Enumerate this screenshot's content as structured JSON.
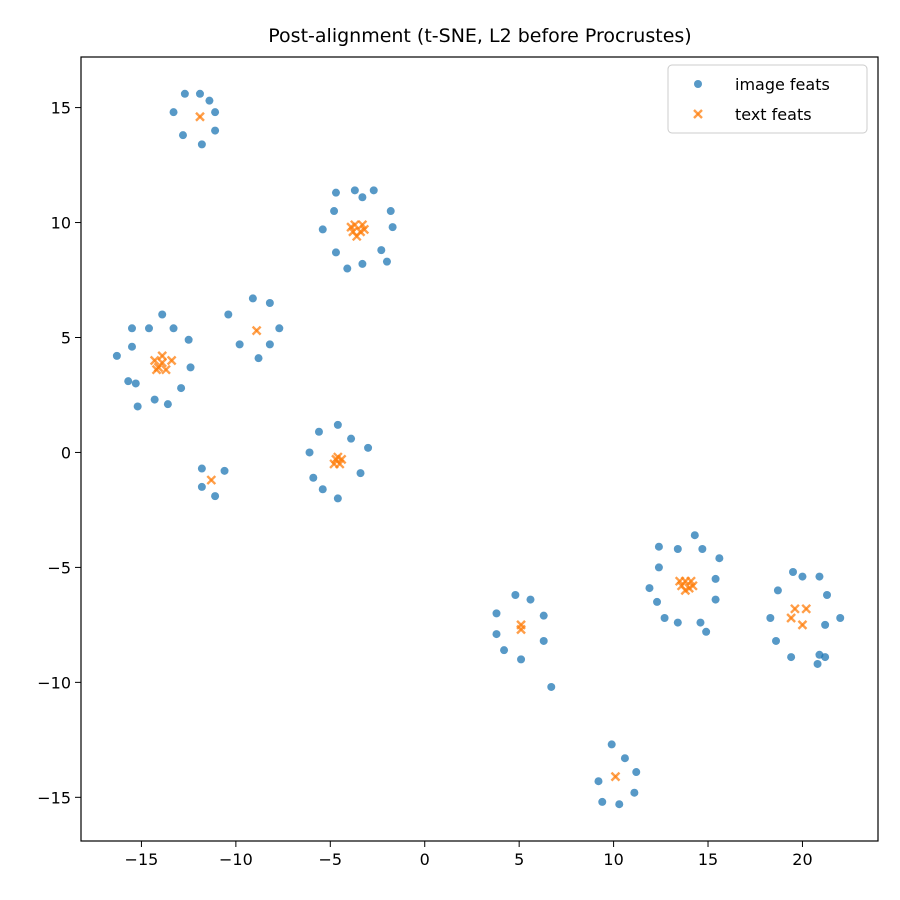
{
  "chart_data": {
    "type": "scatter",
    "title": "Post-alignment (t-SNE, L2 before Procrustes)",
    "xlabel": "",
    "ylabel": "",
    "xlim": [
      -18.2,
      24.0
    ],
    "ylim": [
      -16.9,
      17.2
    ],
    "xticks": [
      -15,
      -10,
      -5,
      0,
      5,
      10,
      15,
      20
    ],
    "yticks": [
      -15,
      -10,
      -5,
      0,
      5,
      10,
      15
    ],
    "xtick_labels": [
      "−15",
      "−10",
      "−5",
      "0",
      "5",
      "10",
      "15",
      "20"
    ],
    "ytick_labels": [
      "−15",
      "−10",
      "−5",
      "0",
      "5",
      "10",
      "15"
    ],
    "grid": false,
    "legend_position": "top-right",
    "series": [
      {
        "name": "image feats",
        "marker": "circle",
        "color": "#1f77b4",
        "points": [
          [
            -12.7,
            15.6
          ],
          [
            -11.9,
            15.6
          ],
          [
            -11.4,
            15.3
          ],
          [
            -13.3,
            14.8
          ],
          [
            -11.1,
            14.8
          ],
          [
            -12.8,
            13.8
          ],
          [
            -11.1,
            14.0
          ],
          [
            -11.8,
            13.4
          ],
          [
            -3.7,
            11.4
          ],
          [
            -2.7,
            11.4
          ],
          [
            -4.7,
            11.3
          ],
          [
            -3.3,
            11.1
          ],
          [
            -4.8,
            10.5
          ],
          [
            -1.8,
            10.5
          ],
          [
            -5.4,
            9.7
          ],
          [
            -1.7,
            9.8
          ],
          [
            -2.3,
            8.8
          ],
          [
            -4.7,
            8.7
          ],
          [
            -2.0,
            8.3
          ],
          [
            -3.3,
            8.2
          ],
          [
            -4.1,
            8.0
          ],
          [
            -9.1,
            6.7
          ],
          [
            -8.2,
            6.5
          ],
          [
            -10.4,
            6.0
          ],
          [
            -7.7,
            5.4
          ],
          [
            -9.8,
            4.7
          ],
          [
            -8.2,
            4.7
          ],
          [
            -8.8,
            4.1
          ],
          [
            -13.9,
            6.0
          ],
          [
            -15.5,
            5.4
          ],
          [
            -14.6,
            5.4
          ],
          [
            -13.3,
            5.4
          ],
          [
            -12.5,
            4.9
          ],
          [
            -15.5,
            4.6
          ],
          [
            -16.3,
            4.2
          ],
          [
            -12.4,
            3.7
          ],
          [
            -15.7,
            3.1
          ],
          [
            -15.3,
            3.0
          ],
          [
            -12.9,
            2.8
          ],
          [
            -14.3,
            2.3
          ],
          [
            -15.2,
            2.0
          ],
          [
            -13.6,
            2.1
          ],
          [
            -4.6,
            1.2
          ],
          [
            -5.6,
            0.9
          ],
          [
            -3.9,
            0.6
          ],
          [
            -3.0,
            0.2
          ],
          [
            -6.1,
            0.0
          ],
          [
            -3.4,
            -0.9
          ],
          [
            -5.9,
            -1.1
          ],
          [
            -5.4,
            -1.6
          ],
          [
            -4.6,
            -2.0
          ],
          [
            -11.8,
            -0.7
          ],
          [
            -10.6,
            -0.8
          ],
          [
            -11.8,
            -1.5
          ],
          [
            -11.1,
            -1.9
          ],
          [
            14.3,
            -3.6
          ],
          [
            12.4,
            -4.1
          ],
          [
            13.4,
            -4.2
          ],
          [
            14.7,
            -4.2
          ],
          [
            15.6,
            -4.6
          ],
          [
            12.4,
            -5.0
          ],
          [
            15.4,
            -5.5
          ],
          [
            11.9,
            -5.9
          ],
          [
            12.3,
            -6.5
          ],
          [
            15.4,
            -6.4
          ],
          [
            12.7,
            -7.2
          ],
          [
            13.4,
            -7.4
          ],
          [
            14.6,
            -7.4
          ],
          [
            14.9,
            -7.8
          ],
          [
            19.5,
            -5.2
          ],
          [
            20.9,
            -5.4
          ],
          [
            20.0,
            -5.4
          ],
          [
            18.7,
            -6.0
          ],
          [
            21.3,
            -6.2
          ],
          [
            18.3,
            -7.2
          ],
          [
            22.0,
            -7.2
          ],
          [
            21.2,
            -7.5
          ],
          [
            18.6,
            -8.2
          ],
          [
            20.9,
            -8.8
          ],
          [
            19.4,
            -8.9
          ],
          [
            21.2,
            -8.9
          ],
          [
            20.8,
            -9.2
          ],
          [
            4.8,
            -6.2
          ],
          [
            5.6,
            -6.4
          ],
          [
            3.8,
            -7.0
          ],
          [
            6.3,
            -7.1
          ],
          [
            3.8,
            -7.9
          ],
          [
            6.3,
            -8.2
          ],
          [
            4.2,
            -8.6
          ],
          [
            5.1,
            -9.0
          ],
          [
            6.7,
            -10.2
          ],
          [
            9.9,
            -12.7
          ],
          [
            10.6,
            -13.3
          ],
          [
            11.2,
            -13.9
          ],
          [
            9.2,
            -14.3
          ],
          [
            11.1,
            -14.8
          ],
          [
            9.4,
            -15.2
          ],
          [
            10.3,
            -15.3
          ]
        ]
      },
      {
        "name": "text feats",
        "marker": "x",
        "color": "#ff7f0e",
        "points": [
          [
            -11.9,
            14.6
          ],
          [
            -3.7,
            9.9
          ],
          [
            -3.3,
            9.9
          ],
          [
            -3.8,
            9.6
          ],
          [
            -3.4,
            9.6
          ],
          [
            -3.6,
            9.4
          ],
          [
            -3.9,
            9.8
          ],
          [
            -3.2,
            9.7
          ],
          [
            -8.9,
            5.3
          ],
          [
            -14.3,
            4.0
          ],
          [
            -13.9,
            4.2
          ],
          [
            -13.4,
            4.0
          ],
          [
            -14.1,
            3.7
          ],
          [
            -13.7,
            3.6
          ],
          [
            -14.2,
            3.6
          ],
          [
            -13.9,
            3.9
          ],
          [
            -4.7,
            -0.3
          ],
          [
            -4.5,
            -0.5
          ],
          [
            -4.8,
            -0.5
          ],
          [
            -4.4,
            -0.3
          ],
          [
            -4.6,
            -0.2
          ],
          [
            -11.3,
            -1.2
          ],
          [
            13.8,
            -5.6
          ],
          [
            14.1,
            -5.6
          ],
          [
            13.6,
            -5.8
          ],
          [
            14.0,
            -5.9
          ],
          [
            13.8,
            -6.0
          ],
          [
            14.2,
            -5.8
          ],
          [
            13.5,
            -5.6
          ],
          [
            19.6,
            -6.8
          ],
          [
            20.2,
            -6.8
          ],
          [
            19.4,
            -7.2
          ],
          [
            20.0,
            -7.5
          ],
          [
            5.1,
            -7.5
          ],
          [
            5.1,
            -7.7
          ],
          [
            10.1,
            -14.1
          ]
        ]
      }
    ]
  }
}
